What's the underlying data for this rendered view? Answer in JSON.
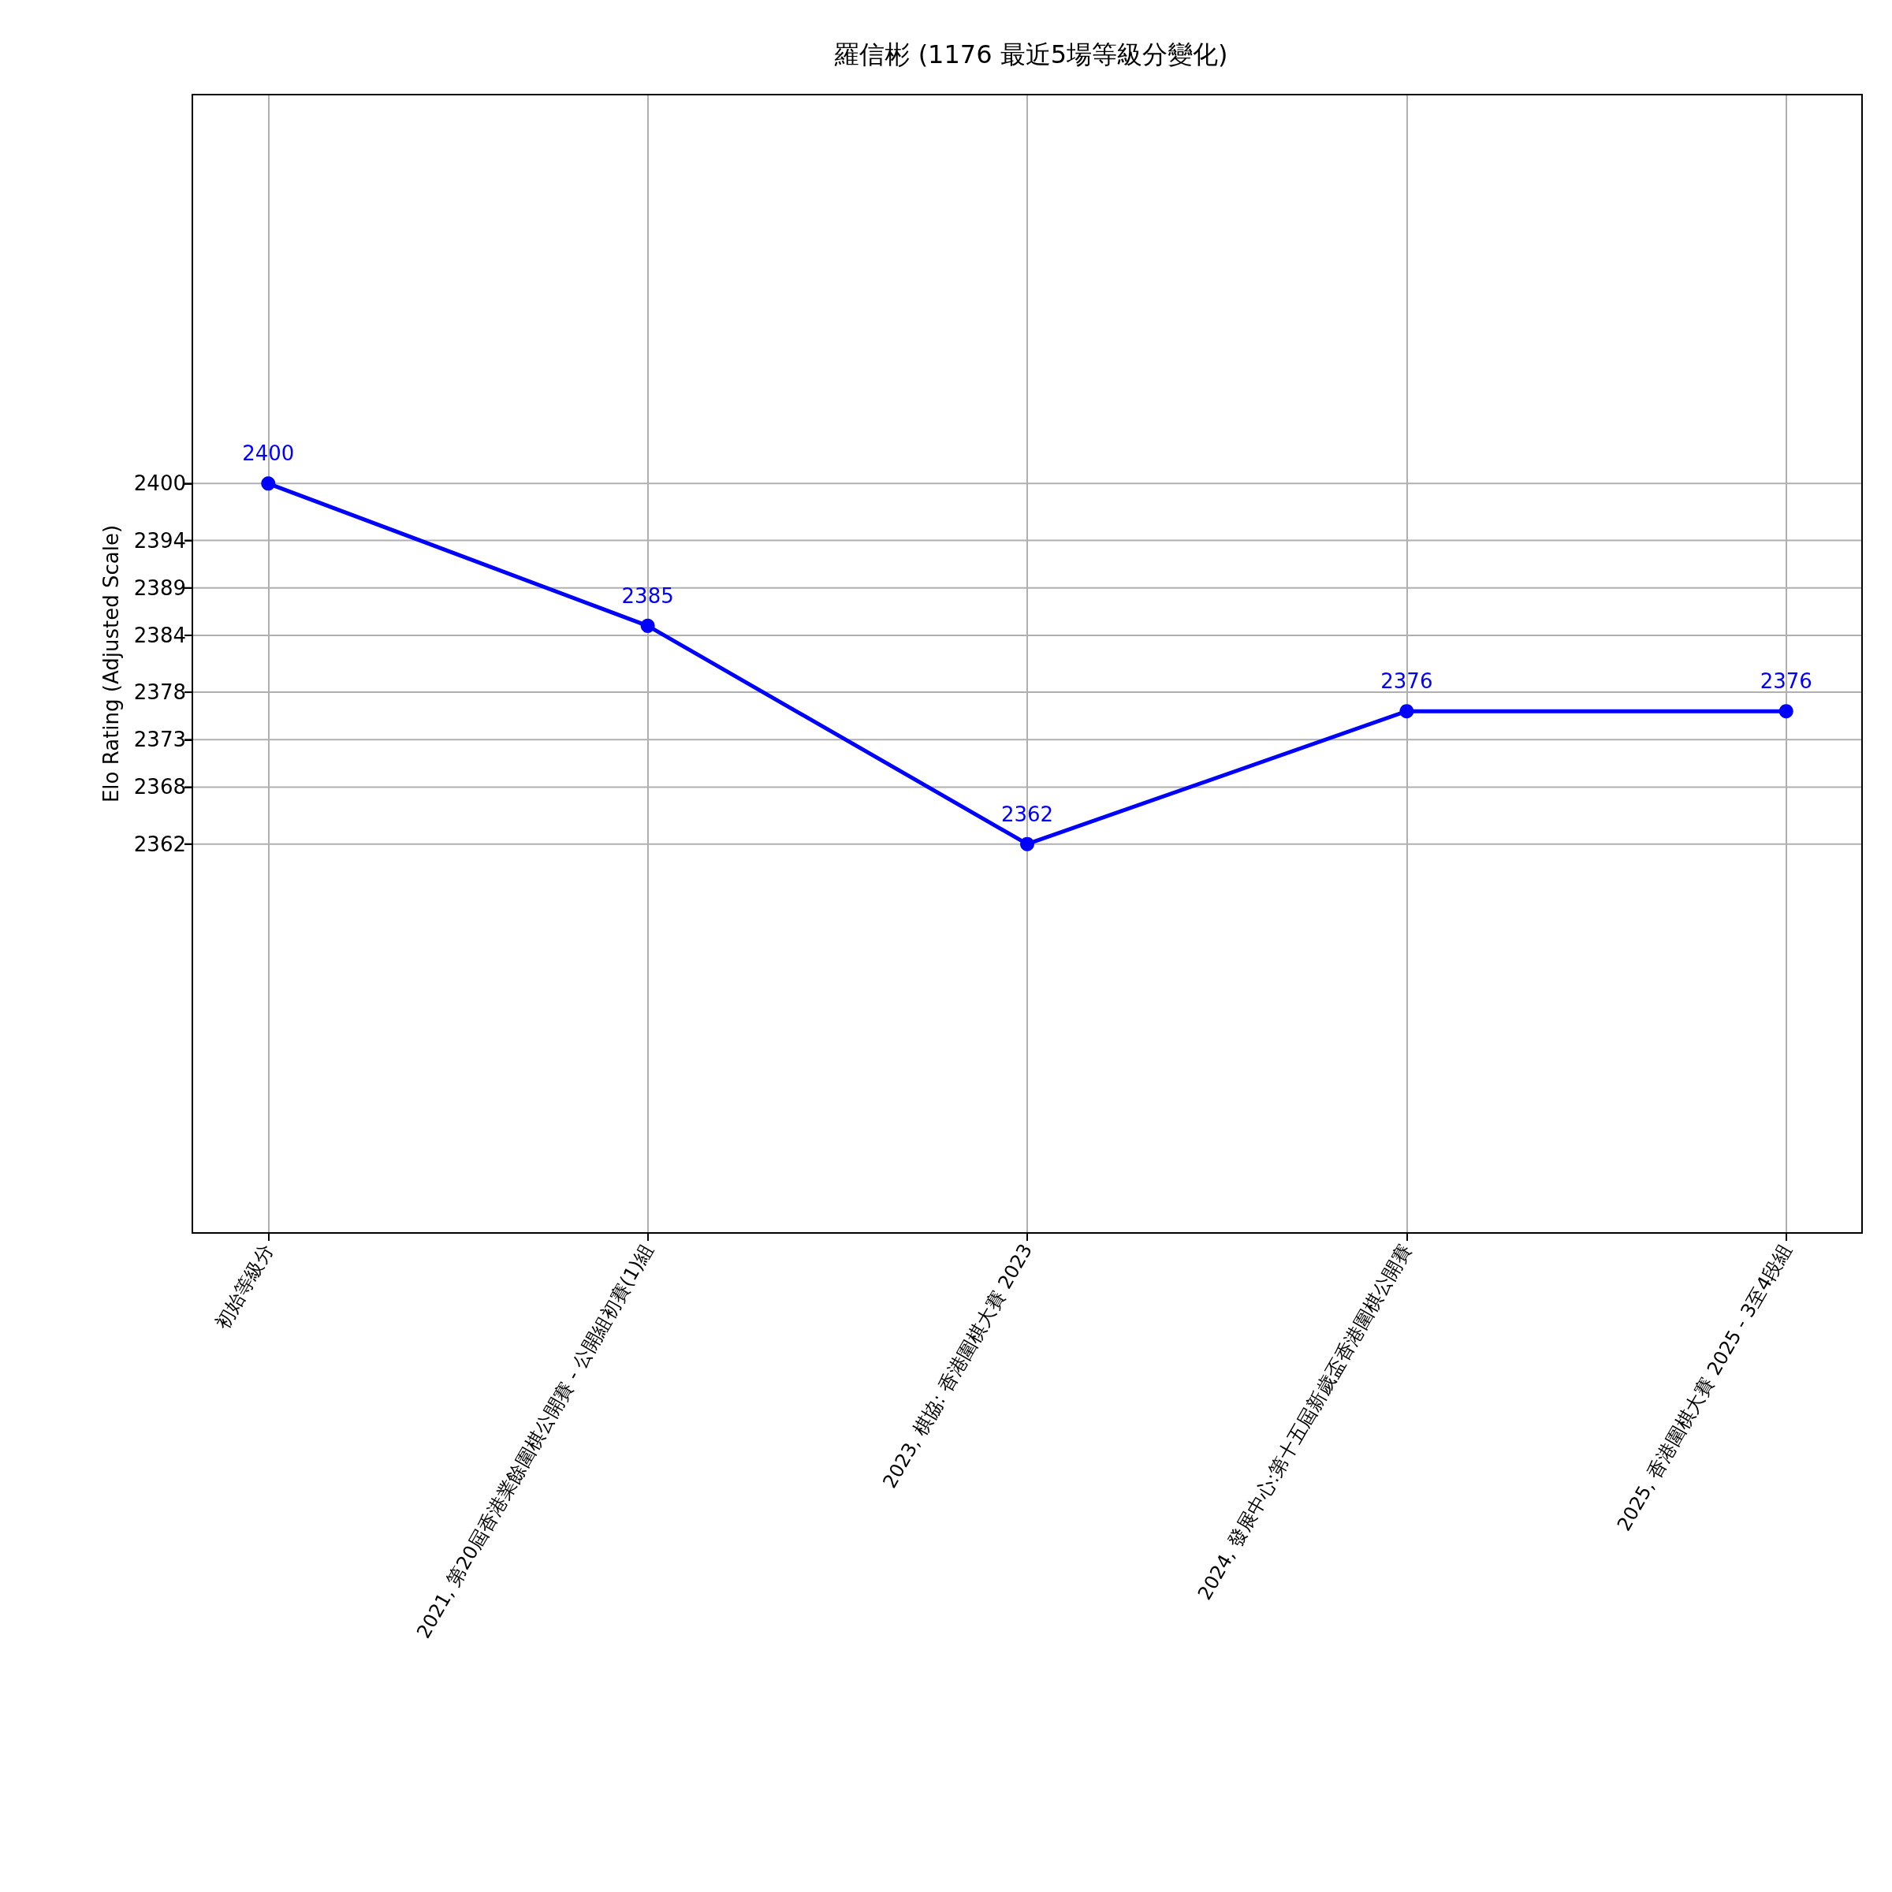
{
  "chart_data": {
    "type": "line",
    "title": "羅信彬 (1176 最近5場等級分變化)",
    "ylabel": "Elo Rating (Adjusted Scale)",
    "categories": [
      "初始等級分",
      "2021, 第20屆香港業餘圍棋公開賽 - 公開組初賽(1)組",
      "2023, 棋協: 香港圍棋大賽 2023",
      "2024, 發展中心:第十五屆新歲盃香港圍棋公開賽",
      "2025, 香港圍棋大賽 2025 - 3至4段組"
    ],
    "series": [
      {
        "color": "#0000ff",
        "values": [
          2400,
          2385,
          2362,
          2376,
          2376
        ]
      }
    ],
    "ylim": [
      2321,
      2441
    ],
    "yticks": [
      2362,
      2368,
      2373,
      2378,
      2384,
      2389,
      2394,
      2400
    ],
    "grid": true,
    "marker": "circle",
    "line_style": "solid",
    "data_labels": true
  }
}
